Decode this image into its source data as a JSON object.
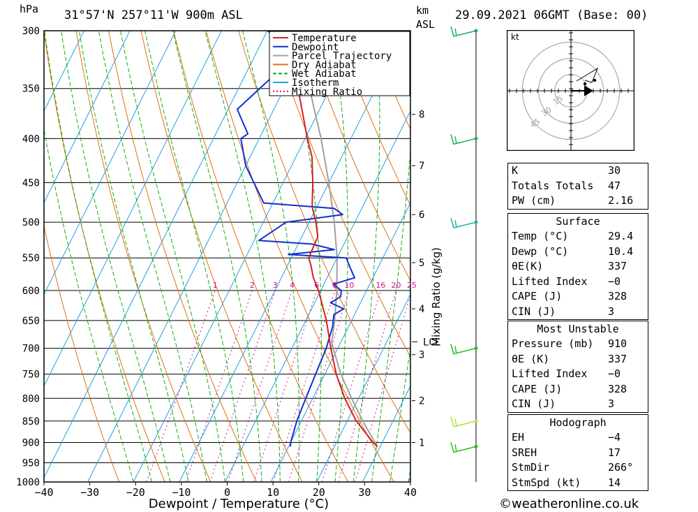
{
  "header": {
    "unit_hpa": "hPa",
    "location": "31°57'N  257°11'W  900m  ASL",
    "unit_km": "km",
    "unit_asl": "ASL",
    "datetime": "29.09.2021  06GMT  (Base: 00)"
  },
  "chart_data": {
    "type": "skew-t",
    "xlabel": "Dewpoint / Temperature (°C)",
    "ylabel": "hPa",
    "mixing_ratio_axis_label": "Mixing Ratio (g/kg)",
    "temp_ticks": [
      -40,
      -30,
      -20,
      -10,
      0,
      10,
      20,
      30,
      40
    ],
    "temp_tick_labels": [
      "−40",
      "−30",
      "−20",
      "−10",
      "0",
      "10",
      "20",
      "30",
      "40"
    ],
    "pressure_levels": [
      300,
      350,
      400,
      450,
      500,
      550,
      600,
      650,
      700,
      750,
      800,
      850,
      900,
      950,
      1000
    ],
    "pressure_range": [
      300,
      1000
    ],
    "temp_range": [
      -40,
      40
    ],
    "km_ticks": [
      {
        "km": "1",
        "p": 900
      },
      {
        "km": "2",
        "p": 805
      },
      {
        "km": "3",
        "p": 712
      },
      {
        "km": "4",
        "p": 630
      },
      {
        "km": "5",
        "p": 557
      },
      {
        "km": "6",
        "p": 490
      },
      {
        "km": "7",
        "p": 430
      },
      {
        "km": "8",
        "p": 375
      }
    ],
    "lcl_label": "LCL",
    "lcl_pressure": 688,
    "mixing_ratio_labels": [
      "1",
      "2",
      "3",
      "4",
      "6",
      "8",
      "10",
      "16",
      "20",
      "25"
    ],
    "mixing_ratio_values": [
      1,
      2,
      3,
      4,
      6,
      8,
      10,
      16,
      20,
      25
    ],
    "legend": [
      "Temperature",
      "Dewpoint",
      "Parcel Trajectory",
      "Dry Adiabat",
      "Wet Adiabat",
      "Isotherm",
      "Mixing Ratio"
    ],
    "series": {
      "temperature": [
        [
          910,
          29.4
        ],
        [
          900,
          28.0
        ],
        [
          850,
          22.0
        ],
        [
          800,
          17.0
        ],
        [
          750,
          12.5
        ],
        [
          700,
          8.5
        ],
        [
          650,
          4.5
        ],
        [
          600,
          -0.5
        ],
        [
          580,
          -3.0
        ],
        [
          560,
          -5.0
        ],
        [
          550,
          -6.2
        ],
        [
          520,
          -6.5
        ],
        [
          500,
          -8.5
        ],
        [
          480,
          -11.0
        ],
        [
          450,
          -13.5
        ],
        [
          420,
          -16.5
        ],
        [
          400,
          -19.5
        ],
        [
          350,
          -27.0
        ],
        [
          300,
          -35.0
        ]
      ],
      "dewpoint": [
        [
          910,
          10.4
        ],
        [
          900,
          10.0
        ],
        [
          850,
          9.0
        ],
        [
          800,
          8.5
        ],
        [
          750,
          8.0
        ],
        [
          700,
          7.5
        ],
        [
          660,
          6.5
        ],
        [
          640,
          5.5
        ],
        [
          630,
          7.0
        ],
        [
          620,
          3.5
        ],
        [
          610,
          5.0
        ],
        [
          600,
          4.5
        ],
        [
          590,
          2.0
        ],
        [
          580,
          6.0
        ],
        [
          565,
          4.0
        ],
        [
          550,
          2.0
        ],
        [
          545,
          -11.0
        ],
        [
          538,
          -1.5
        ],
        [
          530,
          -7.0
        ],
        [
          525,
          -19.0
        ],
        [
          500,
          -15.0
        ],
        [
          490,
          -3.5
        ],
        [
          482,
          -6.0
        ],
        [
          475,
          -22.0
        ],
        [
          430,
          -30.0
        ],
        [
          400,
          -34.0
        ],
        [
          395,
          -33.0
        ],
        [
          370,
          -38.0
        ],
        [
          340,
          -34.0
        ],
        [
          325,
          -28.0
        ],
        [
          300,
          -40.0
        ]
      ],
      "parcel": [
        [
          910,
          29.4
        ],
        [
          850,
          23.4
        ],
        [
          800,
          18.5
        ],
        [
          750,
          13.5
        ],
        [
          700,
          9.0
        ],
        [
          688,
          8.0
        ],
        [
          650,
          6.3
        ],
        [
          600,
          3.5
        ],
        [
          550,
          0.0
        ],
        [
          500,
          -4.5
        ],
        [
          450,
          -10.0
        ],
        [
          400,
          -16.5
        ],
        [
          350,
          -24.5
        ],
        [
          300,
          -34.0
        ]
      ]
    },
    "wind_barbs": [
      {
        "p": 300,
        "color": "#1ab060"
      },
      {
        "p": 400,
        "color": "#1ab060"
      },
      {
        "p": 500,
        "color": "#20b0a0"
      },
      {
        "p": 700,
        "color": "#20c020"
      },
      {
        "p": 850,
        "color": "#b0e040"
      },
      {
        "p": 910,
        "color": "#20c020"
      }
    ]
  },
  "hodograph": {
    "unit": "kt",
    "ring_labels": [
      "15",
      "30",
      "45"
    ],
    "trace": [
      [
        150,
        -8
      ],
      [
        80,
        4
      ],
      [
        45,
        12
      ],
      [
        25,
        22
      ],
      [
        20,
        28
      ]
    ]
  },
  "indices": {
    "general": [
      {
        "label": "K",
        "value": "30"
      },
      {
        "label": "Totals Totals",
        "value": "47"
      },
      {
        "label": "PW (cm)",
        "value": "2.16"
      }
    ],
    "surface_title": "Surface",
    "surface": [
      {
        "label": "Temp (°C)",
        "value": "29.4"
      },
      {
        "label": "Dewp (°C)",
        "value": "10.4"
      },
      {
        "label": "θE(K)",
        "value": "337"
      },
      {
        "label": "Lifted Index",
        "value": "−0"
      },
      {
        "label": "CAPE (J)",
        "value": "328"
      },
      {
        "label": "CIN (J)",
        "value": "3"
      }
    ],
    "most_unstable_title": "Most Unstable",
    "most_unstable": [
      {
        "label": "Pressure (mb)",
        "value": "910"
      },
      {
        "label": "θE (K)",
        "value": "337"
      },
      {
        "label": "Lifted Index",
        "value": "−0"
      },
      {
        "label": "CAPE (J)",
        "value": "328"
      },
      {
        "label": "CIN (J)",
        "value": "3"
      }
    ],
    "hodograph_title": "Hodograph",
    "hodograph_rows": [
      {
        "label": "EH",
        "value": "−4"
      },
      {
        "label": "SREH",
        "value": "17"
      },
      {
        "label": "StmDir",
        "value": "266°"
      },
      {
        "label": "StmSpd (kt)",
        "value": "14"
      }
    ]
  },
  "credit": "©weatheronline.co.uk",
  "colors": {
    "temperature": "#d22020",
    "dewpoint": "#1030d0",
    "parcel": "#a0a0a0",
    "dry_adiabat": "#e07010",
    "wet_adiabat": "#10b010",
    "isotherm": "#20a0e0",
    "mixing_ratio": "#d01090"
  }
}
